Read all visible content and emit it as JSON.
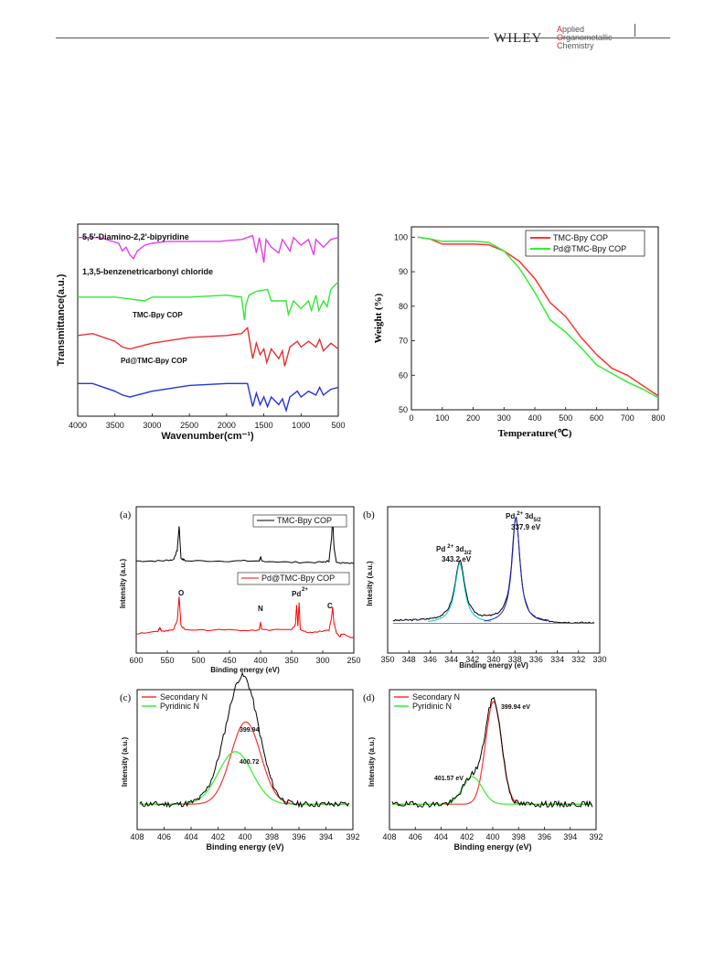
{
  "header": {
    "publisher": "WILEY",
    "journal_initials": [
      "A",
      "O",
      "C"
    ],
    "journal_rest": [
      "pplied",
      "rganometallic",
      "hemistry"
    ]
  },
  "chart_data": [
    {
      "type": "line",
      "id": "ftir",
      "xlabel": "Wavenumber(cm⁻¹)",
      "ylabel": "Transmittance(a.u.)",
      "xlim": [
        4000,
        500
      ],
      "xticks": [
        "4000",
        "3500",
        "3000",
        "2500",
        "2000",
        "1500",
        "1000",
        "500"
      ],
      "series": [
        {
          "name": "5,5'-Diamino-2,2'-bipyridine",
          "color": "#e83ee8",
          "x": [
            4000,
            3700,
            3450,
            3400,
            3350,
            3300,
            3250,
            3200,
            3100,
            3000,
            2800,
            2500,
            2100,
            1800,
            1650,
            1600,
            1560,
            1500,
            1470,
            1400,
            1300,
            1250,
            1150,
            1100,
            1000,
            900,
            830,
            800,
            700,
            600,
            500
          ],
          "y": [
            0.93,
            0.93,
            0.9,
            0.86,
            0.88,
            0.84,
            0.82,
            0.86,
            0.89,
            0.9,
            0.91,
            0.91,
            0.91,
            0.92,
            0.94,
            0.85,
            0.93,
            0.8,
            0.92,
            0.88,
            0.85,
            0.92,
            0.86,
            0.93,
            0.89,
            0.92,
            0.84,
            0.92,
            0.88,
            0.92,
            0.93
          ]
        },
        {
          "name": "1,3,5-benzenetricarbonyl chloride",
          "color": "#33e833",
          "x": [
            4000,
            3500,
            3100,
            3000,
            2500,
            2000,
            1800,
            1760,
            1740,
            1700,
            1600,
            1450,
            1400,
            1200,
            1170,
            1100,
            1000,
            900,
            860,
            800,
            760,
            700,
            650,
            600,
            500
          ],
          "y": [
            0.62,
            0.62,
            0.6,
            0.62,
            0.62,
            0.63,
            0.62,
            0.5,
            0.58,
            0.63,
            0.65,
            0.66,
            0.6,
            0.6,
            0.53,
            0.6,
            0.56,
            0.6,
            0.55,
            0.63,
            0.55,
            0.6,
            0.57,
            0.66,
            0.7
          ]
        },
        {
          "name": "TMC-Bpy COP",
          "color": "#e83030",
          "x": [
            4000,
            3800,
            3500,
            3400,
            3300,
            3200,
            3000,
            2500,
            2000,
            1800,
            1720,
            1650,
            1600,
            1550,
            1500,
            1460,
            1400,
            1300,
            1250,
            1220,
            1150,
            1050,
            1000,
            900,
            800,
            750,
            700,
            600,
            500
          ],
          "y": [
            0.42,
            0.43,
            0.39,
            0.36,
            0.35,
            0.36,
            0.38,
            0.41,
            0.42,
            0.43,
            0.46,
            0.3,
            0.38,
            0.32,
            0.35,
            0.28,
            0.35,
            0.3,
            0.34,
            0.26,
            0.36,
            0.39,
            0.36,
            0.39,
            0.36,
            0.4,
            0.34,
            0.38,
            0.35
          ]
        },
        {
          "name": "Pd@TMC-Bpy COP",
          "color": "#2233e8",
          "x": [
            4000,
            3800,
            3500,
            3400,
            3300,
            3200,
            3000,
            2500,
            2000,
            1800,
            1720,
            1650,
            1600,
            1550,
            1500,
            1450,
            1400,
            1300,
            1250,
            1200,
            1150,
            1050,
            1000,
            900,
            800,
            750,
            700,
            600,
            500
          ],
          "y": [
            0.17,
            0.17,
            0.13,
            0.11,
            0.1,
            0.11,
            0.13,
            0.16,
            0.17,
            0.17,
            0.17,
            0.05,
            0.12,
            0.06,
            0.1,
            0.05,
            0.1,
            0.06,
            0.09,
            0.03,
            0.1,
            0.13,
            0.1,
            0.13,
            0.11,
            0.15,
            0.11,
            0.14,
            0.15
          ]
        }
      ]
    },
    {
      "type": "line",
      "id": "tga",
      "xlabel": "Temperature(℃)",
      "ylabel": "Weight (%)",
      "xlim": [
        0,
        800
      ],
      "ylim": [
        50,
        103
      ],
      "xticks": [
        "0",
        "100",
        "200",
        "300",
        "400",
        "500",
        "600",
        "700",
        "800"
      ],
      "yticks": [
        "50",
        "60",
        "70",
        "80",
        "90",
        "100"
      ],
      "legend_position": "top-right",
      "series": [
        {
          "name": "TMC-Bpy COP",
          "color": "#ff3333",
          "x": [
            20,
            60,
            100,
            150,
            200,
            250,
            300,
            350,
            400,
            450,
            500,
            550,
            600,
            650,
            700,
            750,
            800
          ],
          "y": [
            100,
            99.5,
            98,
            98,
            98,
            97.8,
            96,
            93,
            88,
            81,
            77,
            71,
            66,
            62,
            60,
            57,
            54
          ]
        },
        {
          "name": "Pd@TMC-Bpy COP",
          "color": "#33ee33",
          "x": [
            20,
            60,
            100,
            150,
            200,
            250,
            300,
            350,
            400,
            450,
            500,
            550,
            600,
            650,
            700,
            750,
            800
          ],
          "y": [
            100,
            99.5,
            98.8,
            98.8,
            98.8,
            98.5,
            96,
            91,
            84,
            76,
            72.5,
            68,
            63,
            60.5,
            58,
            56,
            53.5
          ]
        }
      ]
    },
    {
      "type": "line",
      "id": "xps-survey",
      "panel": "(a)",
      "xlabel": "Binding energy (eV)",
      "ylabel": "Intensity (a.u.)",
      "xlim": [
        600,
        250
      ],
      "xticks": [
        "600",
        "550",
        "500",
        "450",
        "400",
        "350",
        "300",
        "250"
      ],
      "annotations": [
        "O",
        "N",
        "Pd",
        "2+",
        "C"
      ],
      "series": [
        {
          "name": "TMC-Bpy COP",
          "color": "#000000",
          "x": [
            600,
            560,
            540,
            534,
            531,
            528,
            520,
            450,
            402,
            400,
            398,
            350,
            300,
            290,
            286,
            284,
            282,
            278,
            250
          ],
          "y": [
            0.64,
            0.64,
            0.65,
            0.72,
            0.9,
            0.66,
            0.64,
            0.64,
            0.64,
            0.67,
            0.64,
            0.63,
            0.63,
            0.64,
            0.8,
            0.96,
            0.75,
            0.63,
            0.62
          ]
        },
        {
          "name": "Pd@TMC-Bpy COP",
          "color": "#ff0000",
          "x": [
            600,
            565,
            562,
            559,
            540,
            534,
            531,
            528,
            520,
            450,
            402,
            400,
            398,
            350,
            344,
            342,
            340,
            338,
            336,
            320,
            290,
            286,
            284,
            282,
            278,
            272,
            270,
            250
          ],
          "y": [
            0.1,
            0.12,
            0.15,
            0.12,
            0.13,
            0.2,
            0.38,
            0.16,
            0.13,
            0.13,
            0.13,
            0.19,
            0.13,
            0.13,
            0.17,
            0.31,
            0.16,
            0.33,
            0.13,
            0.11,
            0.13,
            0.22,
            0.3,
            0.18,
            0.11,
            0.08,
            0.1,
            0.07
          ]
        }
      ]
    },
    {
      "type": "line",
      "id": "xps-pd3d",
      "panel": "(b)",
      "xlabel": "Binding energy (eV)",
      "ylabel": "Intesity (a.u.)",
      "xlim": [
        350,
        330
      ],
      "xticks": [
        "350",
        "348",
        "346",
        "344",
        "342",
        "340",
        "338",
        "336",
        "334",
        "332",
        "330"
      ],
      "peaks": [
        {
          "label": "Pd",
          "superscript": "2+",
          "orbital": "3d",
          "subscript": "3/2",
          "value": "343.2 eV",
          "center": 343.2
        },
        {
          "label": "Pd",
          "superscript": "2+",
          "orbital": "3d",
          "subscript": "5/2",
          "value": "337.9 eV",
          "center": 337.9
        }
      ],
      "series": [
        {
          "name": "raw",
          "color": "#000000"
        },
        {
          "name": "fit 3d3/2",
          "color": "#00cccc"
        },
        {
          "name": "fit 3d5/2",
          "color": "#2222cc"
        }
      ]
    },
    {
      "type": "line",
      "id": "xps-n1s-c",
      "panel": "(c)",
      "xlabel": "Binding energy (eV)",
      "ylabel": "Intensity (a.u.)",
      "xlim": [
        408,
        392
      ],
      "xticks": [
        "408",
        "406",
        "404",
        "402",
        "400",
        "398",
        "396",
        "394",
        "392"
      ],
      "legend": [
        {
          "name": "Secondary N",
          "color": "#ff3333"
        },
        {
          "name": "Pyridinic N",
          "color": "#33ee33"
        }
      ],
      "peak_labels": [
        {
          "text": "399.94",
          "center": 399.94
        },
        {
          "text": "400.72",
          "center": 400.72
        }
      ],
      "series": [
        {
          "name": "Secondary N",
          "color": "#ff3333",
          "center": 399.94,
          "height": 0.72,
          "width": 1.1
        },
        {
          "name": "Pyridinic N",
          "color": "#33ee33",
          "center": 400.72,
          "height": 0.46,
          "width": 1.25
        },
        {
          "name": "raw",
          "color": "#000000"
        }
      ]
    },
    {
      "type": "line",
      "id": "xps-n1s-d",
      "panel": "(d)",
      "xlabel": "Binding energy (eV)",
      "ylabel": "Intensity (a.u.)",
      "xlim": [
        408,
        392
      ],
      "xticks": [
        "408",
        "406",
        "404",
        "402",
        "400",
        "398",
        "396",
        "394",
        "392"
      ],
      "legend": [
        {
          "name": "Secondary N",
          "color": "#ff3333"
        },
        {
          "name": "Pyridinic N",
          "color": "#33ee33"
        }
      ],
      "peak_labels": [
        {
          "text": "399.94 eV",
          "center": 399.94
        },
        {
          "text": "401.57 eV",
          "center": 401.57
        }
      ],
      "series": [
        {
          "name": "Secondary N",
          "color": "#ff3333",
          "center": 399.94,
          "height": 0.9,
          "width": 0.62
        },
        {
          "name": "Pyridinic N",
          "color": "#33ee33",
          "center": 401.57,
          "height": 0.24,
          "width": 0.75
        },
        {
          "name": "raw",
          "color": "#000000"
        }
      ]
    }
  ]
}
